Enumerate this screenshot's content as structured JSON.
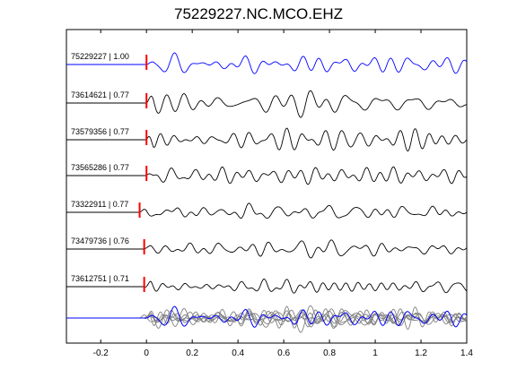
{
  "title": "75229227.NC.MCO.EHZ",
  "chart_data": {
    "type": "line",
    "title": "75229227.NC.MCO.EHZ",
    "xlabel": "",
    "ylabel": "",
    "xlim": [
      -0.35,
      1.4
    ],
    "xticks": [
      -0.2,
      0,
      0.2,
      0.4,
      0.6,
      0.8,
      1,
      1.2,
      1.4
    ],
    "xtick_labels": [
      "-0.2",
      "0",
      "0.2",
      "0.4",
      "0.6",
      "0.8",
      "1",
      "1.2",
      "1.4"
    ],
    "grid": false,
    "series": [
      {
        "name": "75229227 | 1.00",
        "pick": 0.0,
        "color": "#0000ff"
      },
      {
        "name": "73614621 | 0.77",
        "pick": 0.0,
        "color": "#000000"
      },
      {
        "name": "73579356 | 0.77",
        "pick": 0.0,
        "color": "#000000"
      },
      {
        "name": "73565286 | 0.77",
        "pick": 0.0,
        "color": "#000000"
      },
      {
        "name": "73322911 | 0.77",
        "pick": -0.03,
        "color": "#000000"
      },
      {
        "name": "73479736 | 0.76",
        "pick": -0.01,
        "color": "#000000"
      },
      {
        "name": "73612751 | 0.71",
        "pick": -0.01,
        "color": "#000000"
      }
    ],
    "stack_colors": {
      "reference": "#0000ff",
      "others": "#808080"
    },
    "pick_color": "#ff0000"
  }
}
